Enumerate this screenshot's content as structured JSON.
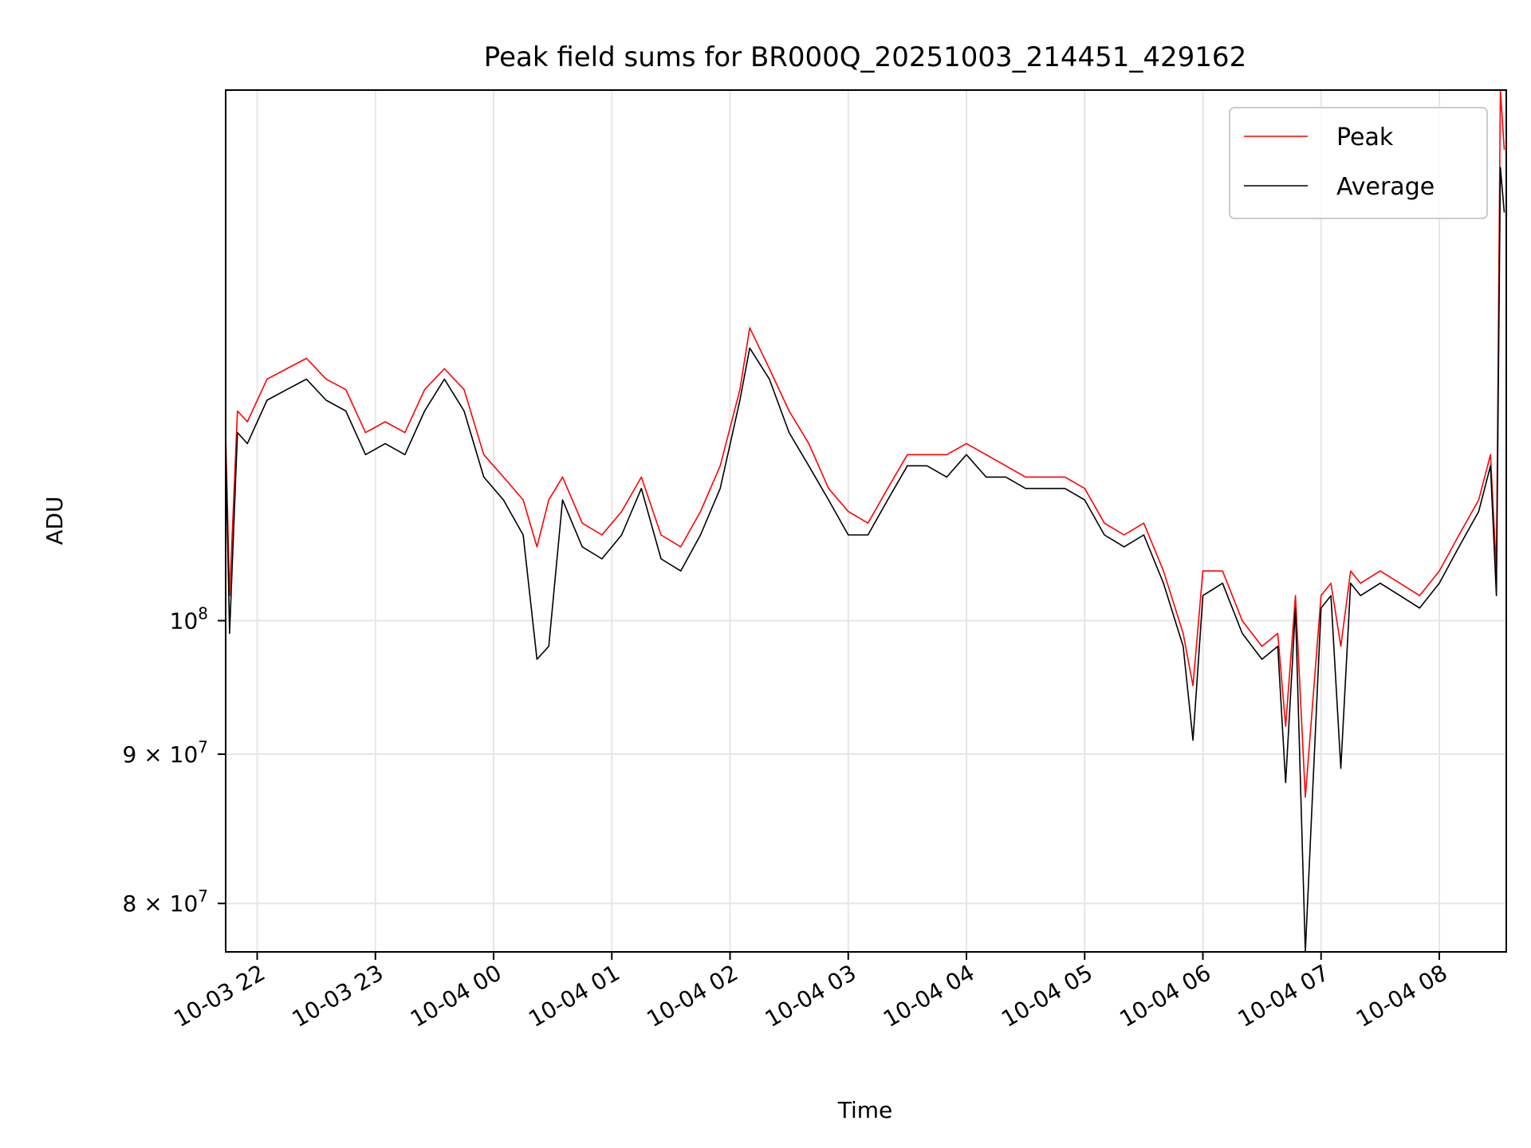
{
  "chart_data": {
    "type": "line",
    "title": "Peak field sums for BR000Q_20251003_214451_429162",
    "xlabel": "Time",
    "ylabel": "ADU",
    "y_scale": "log",
    "ylim": [
      77000000,
      152000000
    ],
    "xlim": [
      "2025-10-03 21:44",
      "2025-10-04 08:34"
    ],
    "grid": true,
    "legend_position": "top-right",
    "x_ticks": [
      {
        "label": "10-03 22",
        "time": "2025-10-03 22:00"
      },
      {
        "label": "10-03 23",
        "time": "2025-10-03 23:00"
      },
      {
        "label": "10-04 00",
        "time": "2025-10-04 00:00"
      },
      {
        "label": "10-04 01",
        "time": "2025-10-04 01:00"
      },
      {
        "label": "10-04 02",
        "time": "2025-10-04 02:00"
      },
      {
        "label": "10-04 03",
        "time": "2025-10-04 03:00"
      },
      {
        "label": "10-04 04",
        "time": "2025-10-04 04:00"
      },
      {
        "label": "10-04 05",
        "time": "2025-10-04 05:00"
      },
      {
        "label": "10-04 06",
        "time": "2025-10-04 06:00"
      },
      {
        "label": "10-04 07",
        "time": "2025-10-04 07:00"
      },
      {
        "label": "10-04 08",
        "time": "2025-10-04 08:00"
      }
    ],
    "y_ticks": [
      {
        "value": 80000000,
        "mantissa": "8",
        "label": "8 × 10^7"
      },
      {
        "value": 90000000,
        "mantissa": "9",
        "label": "9 × 10^7"
      },
      {
        "value": 100000000,
        "label": "10^8"
      }
    ],
    "series": [
      {
        "name": "Peak",
        "color": "#ff0000",
        "x": [
          "2025-10-03 21:44",
          "2025-10-03 21:46",
          "2025-10-03 21:50",
          "2025-10-03 21:55",
          "2025-10-03 22:05",
          "2025-10-03 22:15",
          "2025-10-03 22:25",
          "2025-10-03 22:35",
          "2025-10-03 22:45",
          "2025-10-03 22:55",
          "2025-10-03 23:05",
          "2025-10-03 23:15",
          "2025-10-03 23:25",
          "2025-10-03 23:35",
          "2025-10-03 23:45",
          "2025-10-03 23:55",
          "2025-10-04 00:05",
          "2025-10-04 00:15",
          "2025-10-04 00:22",
          "2025-10-04 00:28",
          "2025-10-04 00:35",
          "2025-10-04 00:45",
          "2025-10-04 00:55",
          "2025-10-04 01:05",
          "2025-10-04 01:15",
          "2025-10-04 01:25",
          "2025-10-04 01:35",
          "2025-10-04 01:45",
          "2025-10-04 01:55",
          "2025-10-04 02:05",
          "2025-10-04 02:10",
          "2025-10-04 02:20",
          "2025-10-04 02:30",
          "2025-10-04 02:40",
          "2025-10-04 02:50",
          "2025-10-04 03:00",
          "2025-10-04 03:10",
          "2025-10-04 03:20",
          "2025-10-04 03:30",
          "2025-10-04 03:40",
          "2025-10-04 03:50",
          "2025-10-04 04:00",
          "2025-10-04 04:10",
          "2025-10-04 04:20",
          "2025-10-04 04:30",
          "2025-10-04 04:40",
          "2025-10-04 04:50",
          "2025-10-04 05:00",
          "2025-10-04 05:10",
          "2025-10-04 05:20",
          "2025-10-04 05:30",
          "2025-10-04 05:40",
          "2025-10-04 05:50",
          "2025-10-04 05:55",
          "2025-10-04 06:00",
          "2025-10-04 06:10",
          "2025-10-04 06:20",
          "2025-10-04 06:30",
          "2025-10-04 06:38",
          "2025-10-04 06:42",
          "2025-10-04 06:47",
          "2025-10-04 06:52",
          "2025-10-04 07:00",
          "2025-10-04 07:05",
          "2025-10-04 07:10",
          "2025-10-04 07:15",
          "2025-10-04 07:20",
          "2025-10-04 07:30",
          "2025-10-04 07:40",
          "2025-10-04 07:50",
          "2025-10-04 08:00",
          "2025-10-04 08:10",
          "2025-10-04 08:20",
          "2025-10-04 08:26",
          "2025-10-04 08:29",
          "2025-10-04 08:31",
          "2025-10-04 08:33"
        ],
        "values": [
          116000000,
          102000000,
          118000000,
          117000000,
          121000000,
          122000000,
          123000000,
          121000000,
          120000000,
          116000000,
          117000000,
          116000000,
          120000000,
          122000000,
          120000000,
          114000000,
          112000000,
          110000000,
          106000000,
          110000000,
          112000000,
          108000000,
          107000000,
          109000000,
          112000000,
          107000000,
          106000000,
          109000000,
          113000000,
          120000000,
          126000000,
          122000000,
          118000000,
          115000000,
          111000000,
          109000000,
          108000000,
          111000000,
          114000000,
          114000000,
          114000000,
          115000000,
          114000000,
          113000000,
          112000000,
          112000000,
          112000000,
          111000000,
          108000000,
          107000000,
          108000000,
          104000000,
          99000000,
          95000000,
          104000000,
          104000000,
          100000000,
          98000000,
          99000000,
          92000000,
          102000000,
          87000000,
          102000000,
          103000000,
          98000000,
          104000000,
          103000000,
          104000000,
          103000000,
          102000000,
          104000000,
          107000000,
          110000000,
          114000000,
          104000000,
          152000000,
          145000000
        ]
      },
      {
        "name": "Average",
        "color": "#000000",
        "x": [
          "2025-10-03 21:44",
          "2025-10-03 21:46",
          "2025-10-03 21:50",
          "2025-10-03 21:55",
          "2025-10-03 22:05",
          "2025-10-03 22:15",
          "2025-10-03 22:25",
          "2025-10-03 22:35",
          "2025-10-03 22:45",
          "2025-10-03 22:55",
          "2025-10-03 23:05",
          "2025-10-03 23:15",
          "2025-10-03 23:25",
          "2025-10-03 23:35",
          "2025-10-03 23:45",
          "2025-10-03 23:55",
          "2025-10-04 00:05",
          "2025-10-04 00:15",
          "2025-10-04 00:22",
          "2025-10-04 00:28",
          "2025-10-04 00:35",
          "2025-10-04 00:45",
          "2025-10-04 00:55",
          "2025-10-04 01:05",
          "2025-10-04 01:15",
          "2025-10-04 01:25",
          "2025-10-04 01:35",
          "2025-10-04 01:45",
          "2025-10-04 01:55",
          "2025-10-04 02:05",
          "2025-10-04 02:10",
          "2025-10-04 02:20",
          "2025-10-04 02:30",
          "2025-10-04 02:40",
          "2025-10-04 02:50",
          "2025-10-04 03:00",
          "2025-10-04 03:10",
          "2025-10-04 03:20",
          "2025-10-04 03:30",
          "2025-10-04 03:40",
          "2025-10-04 03:50",
          "2025-10-04 04:00",
          "2025-10-04 04:10",
          "2025-10-04 04:20",
          "2025-10-04 04:30",
          "2025-10-04 04:40",
          "2025-10-04 04:50",
          "2025-10-04 05:00",
          "2025-10-04 05:10",
          "2025-10-04 05:20",
          "2025-10-04 05:30",
          "2025-10-04 05:40",
          "2025-10-04 05:50",
          "2025-10-04 05:55",
          "2025-10-04 06:00",
          "2025-10-04 06:10",
          "2025-10-04 06:20",
          "2025-10-04 06:30",
          "2025-10-04 06:38",
          "2025-10-04 06:42",
          "2025-10-04 06:47",
          "2025-10-04 06:52",
          "2025-10-04 07:00",
          "2025-10-04 07:05",
          "2025-10-04 07:10",
          "2025-10-04 07:15",
          "2025-10-04 07:20",
          "2025-10-04 07:30",
          "2025-10-04 07:40",
          "2025-10-04 07:50",
          "2025-10-04 08:00",
          "2025-10-04 08:10",
          "2025-10-04 08:20",
          "2025-10-04 08:26",
          "2025-10-04 08:29",
          "2025-10-04 08:31",
          "2025-10-04 08:33"
        ],
        "values": [
          115000000,
          99000000,
          116000000,
          115000000,
          119000000,
          120000000,
          121000000,
          119000000,
          118000000,
          114000000,
          115000000,
          114000000,
          118000000,
          121000000,
          118000000,
          112000000,
          110000000,
          107000000,
          97000000,
          98000000,
          110000000,
          106000000,
          105000000,
          107000000,
          111000000,
          105000000,
          104000000,
          107000000,
          111000000,
          119000000,
          124000000,
          121000000,
          116000000,
          113000000,
          110000000,
          107000000,
          107000000,
          110000000,
          113000000,
          113000000,
          112000000,
          114000000,
          112000000,
          112000000,
          111000000,
          111000000,
          111000000,
          110000000,
          107000000,
          106000000,
          107000000,
          103000000,
          98000000,
          91000000,
          102000000,
          103000000,
          99000000,
          97000000,
          98000000,
          88000000,
          101000000,
          77000000,
          101000000,
          102000000,
          89000000,
          103000000,
          102000000,
          103000000,
          102000000,
          101000000,
          103000000,
          106000000,
          109000000,
          113000000,
          102000000,
          143000000,
          138000000
        ]
      }
    ]
  }
}
